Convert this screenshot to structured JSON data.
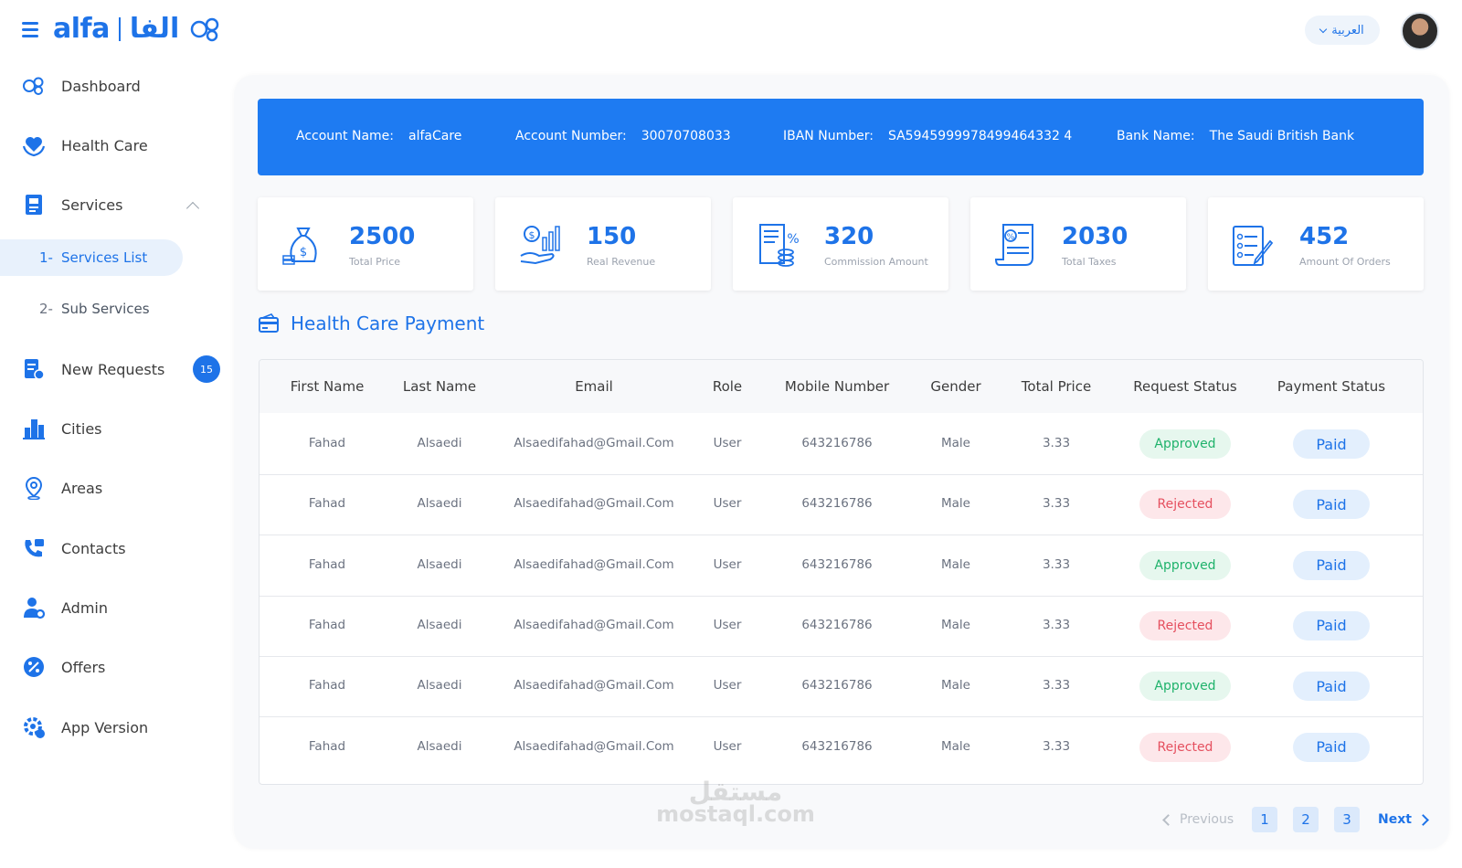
{
  "header": {
    "logo_latin": "alfa",
    "logo_arabic": "الفا",
    "language_label": "العربية"
  },
  "sidebar": {
    "items": [
      {
        "label": "Dashboard",
        "icon": "dashboard-icon"
      },
      {
        "label": "Health Care",
        "icon": "heart-hands-icon"
      },
      {
        "label": "Services",
        "icon": "services-icon"
      },
      {
        "label": "New Requests",
        "icon": "requests-icon",
        "badge": "15"
      },
      {
        "label": "Cities",
        "icon": "city-icon"
      },
      {
        "label": "Areas",
        "icon": "location-pin-icon"
      },
      {
        "label": "Contacts",
        "icon": "phone-icon"
      },
      {
        "label": "Admin",
        "icon": "admin-icon"
      },
      {
        "label": "Offers",
        "icon": "percent-badge-icon"
      },
      {
        "label": "App Version",
        "icon": "gear-version-icon"
      }
    ],
    "sub_items": [
      {
        "num": "1-",
        "label": "Services List"
      },
      {
        "num": "2-",
        "label": "Sub Services"
      }
    ]
  },
  "bank": {
    "account_name_label": "Account Name:",
    "account_name": "alfaCare",
    "account_number_label": "Account Number:",
    "account_number": "30070708033",
    "iban_label": "IBAN Number:",
    "iban": "SA5945999978499464332 4",
    "bank_name_label": "Bank Name:",
    "bank_name": "The Saudi British Bank"
  },
  "stats": [
    {
      "value": "2500",
      "caption": "Total Price",
      "icon": "money-bag-icon"
    },
    {
      "value": "150",
      "caption": "Real Revenue",
      "icon": "revenue-hand-icon"
    },
    {
      "value": "320",
      "caption": "Commission Amount",
      "icon": "commission-receipt-icon"
    },
    {
      "value": "2030",
      "caption": "Total Taxes",
      "icon": "tax-scroll-icon"
    },
    {
      "value": "452",
      "caption": "Amount Of Orders",
      "icon": "orders-checklist-icon"
    }
  ],
  "section": {
    "title": "Health Care Payment",
    "icon": "payment-card-icon"
  },
  "table": {
    "columns": [
      "First Name",
      "Last Name",
      "Email",
      "Role",
      "Mobile Number",
      "Gender",
      "Total Price",
      "Request Status",
      "Payment Status"
    ],
    "rows": [
      {
        "first": "Fahad",
        "last": "Alsaedi",
        "email": "Alsaedifahad@Gmail.Com",
        "role": "User",
        "mobile": "643216786",
        "gender": "Male",
        "price": "3.33",
        "request": "Approved",
        "payment": "Paid"
      },
      {
        "first": "Fahad",
        "last": "Alsaedi",
        "email": "Alsaedifahad@Gmail.Com",
        "role": "User",
        "mobile": "643216786",
        "gender": "Male",
        "price": "3.33",
        "request": "Rejected",
        "payment": "Paid"
      },
      {
        "first": "Fahad",
        "last": "Alsaedi",
        "email": "Alsaedifahad@Gmail.Com",
        "role": "User",
        "mobile": "643216786",
        "gender": "Male",
        "price": "3.33",
        "request": "Approved",
        "payment": "Paid"
      },
      {
        "first": "Fahad",
        "last": "Alsaedi",
        "email": "Alsaedifahad@Gmail.Com",
        "role": "User",
        "mobile": "643216786",
        "gender": "Male",
        "price": "3.33",
        "request": "Rejected",
        "payment": "Paid"
      },
      {
        "first": "Fahad",
        "last": "Alsaedi",
        "email": "Alsaedifahad@Gmail.Com",
        "role": "User",
        "mobile": "643216786",
        "gender": "Male",
        "price": "3.33",
        "request": "Approved",
        "payment": "Paid"
      },
      {
        "first": "Fahad",
        "last": "Alsaedi",
        "email": "Alsaedifahad@Gmail.Com",
        "role": "User",
        "mobile": "643216786",
        "gender": "Male",
        "price": "3.33",
        "request": "Rejected",
        "payment": "Paid"
      }
    ]
  },
  "pagination": {
    "previous": "Previous",
    "pages": [
      "1",
      "2",
      "3"
    ],
    "next": "Next"
  },
  "watermark": {
    "arabic": "مستقل",
    "latin": "mostaql.com"
  },
  "colors": {
    "accent": "#1e73e8",
    "approved": "#1fb26b",
    "rejected": "#e5505f"
  }
}
